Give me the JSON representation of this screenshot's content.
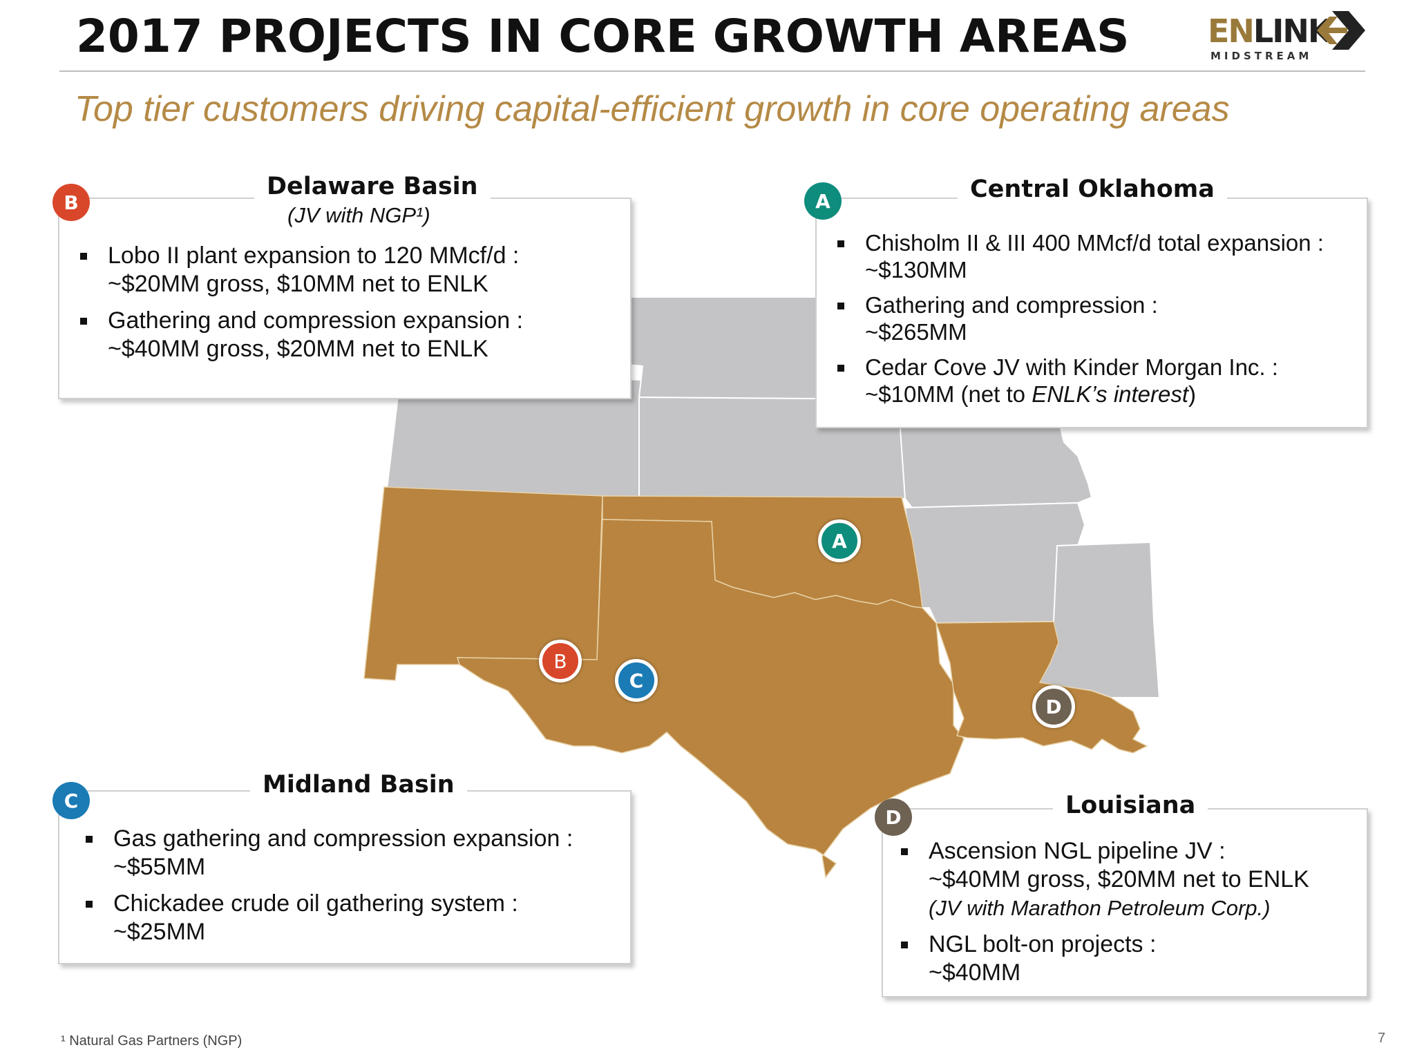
{
  "title": "2017 PROJECTS IN CORE GROWTH AREAS",
  "subtitle": "Top tier customers driving capital-efficient growth in core operating areas",
  "logo": {
    "word_prefix": "EN",
    "word_rest": "LINK",
    "sub": "MIDSTREAM"
  },
  "colors": {
    "gold": "#b8843f",
    "red": "#d9472b",
    "teal": "#0e8c7c",
    "blue": "#1a7bb5",
    "brown": "#6e6253",
    "gray": "#c4c4c6"
  },
  "delaware": {
    "badge": "B",
    "header": "Delaware Basin",
    "sub": "(JV with NGP¹)",
    "items": [
      {
        "line1": "Lobo II plant expansion to 120 MMcf/d :",
        "line2": "~$20MM gross, $10MM net to ENLK"
      },
      {
        "line1": "Gathering and compression expansion :",
        "line2": "~$40MM gross, $20MM net to ENLK"
      }
    ]
  },
  "oklahoma": {
    "badge": "A",
    "header": "Central Oklahoma",
    "items": [
      {
        "line1": "Chisholm II & III 400 MMcf/d total expansion :",
        "line2": "~$130MM"
      },
      {
        "line1": "Gathering and compression :",
        "line2": "~$265MM"
      },
      {
        "line1": "Cedar Cove JV with Kinder Morgan Inc. :",
        "line2a": "~$10MM (net to ",
        "line2b": "ENLK’s interest",
        "line2c": ")"
      }
    ]
  },
  "midland": {
    "badge": "C",
    "header": "Midland Basin",
    "items": [
      {
        "line1": "Gas gathering and compression expansion :",
        "line2": "~$55MM"
      },
      {
        "line1": "Chickadee crude oil gathering system :",
        "line2": "~$25MM"
      }
    ]
  },
  "louisiana": {
    "badge": "D",
    "header": "Louisiana",
    "items": [
      {
        "line1": "Ascension NGL pipeline JV  :",
        "line2": "~$40MM gross, $20MM net to ENLK",
        "line3": "(JV with Marathon Petroleum Corp.)"
      },
      {
        "line1": "NGL bolt-on projects :",
        "line2": "~$40MM"
      }
    ]
  },
  "map_markers": {
    "a": "A",
    "b": "B",
    "c": "C",
    "d": "D"
  },
  "footnote": "¹ Natural Gas Partners (NGP)",
  "page_number": "7"
}
